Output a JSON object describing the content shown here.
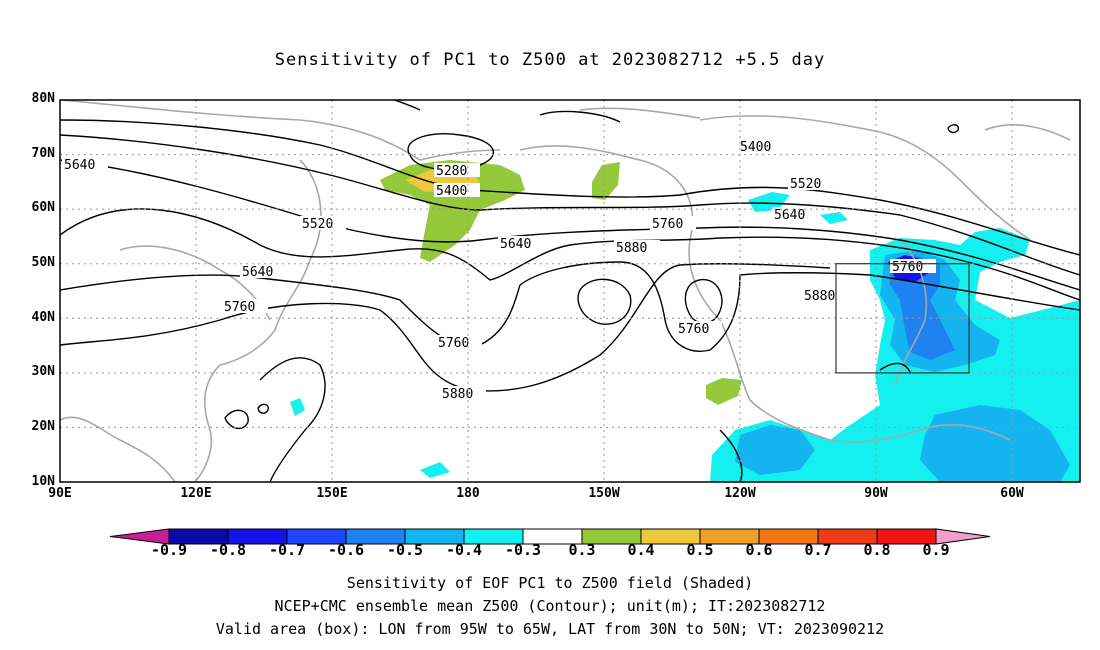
{
  "title": "Sensitivity of PC1 to Z500 at 2023082712 +5.5 day",
  "lat_labels": [
    "80N",
    "70N",
    "60N",
    "50N",
    "40N",
    "30N",
    "20N",
    "10N"
  ],
  "lon_labels": [
    "90E",
    "120E",
    "150E",
    "180",
    "150W",
    "120W",
    "90W",
    "60W"
  ],
  "colorbar": {
    "labels": [
      "-0.9",
      "-0.8",
      "-0.7",
      "-0.6",
      "-0.5",
      "-0.4",
      "-0.3",
      "0.3",
      "0.4",
      "0.5",
      "0.6",
      "0.7",
      "0.8",
      "0.9"
    ],
    "colors": [
      "#0a0aa8",
      "#1414e6",
      "#1e46ff",
      "#1e82f0",
      "#14b4f0",
      "#14f0f0",
      "#ffffff",
      "#96c83c",
      "#f0c83c",
      "#f0a028",
      "#f07814",
      "#f03c14",
      "#f01414"
    ],
    "low_end_color": "#c81e96",
    "high_end_color": "#f0a0c8"
  },
  "contour_labels": {
    "c5280": "5280",
    "c5400a": "5400",
    "c5400b": "5400",
    "c5520a": "5520",
    "c5520b": "5520",
    "c5640a": "5640",
    "c5640b": "5640",
    "c5640c": "5640",
    "c5640d": "5640",
    "c5760a": "5760",
    "c5760b": "5760",
    "c5760c": "5760",
    "c5760d": "5760",
    "c5760e": "5760",
    "c5880a": "5880",
    "c5880b": "5880",
    "c5880c": "5880"
  },
  "footer": {
    "line1": "Sensitivity of EOF PC1 to Z500 field (Shaded)",
    "line2": "NCEP+CMC ensemble mean Z500 (Contour); unit(m); IT:2023082712",
    "line3": "Valid area (box): LON from 95W to 65W, LAT from 30N to 50N; VT: 2023090212"
  }
}
